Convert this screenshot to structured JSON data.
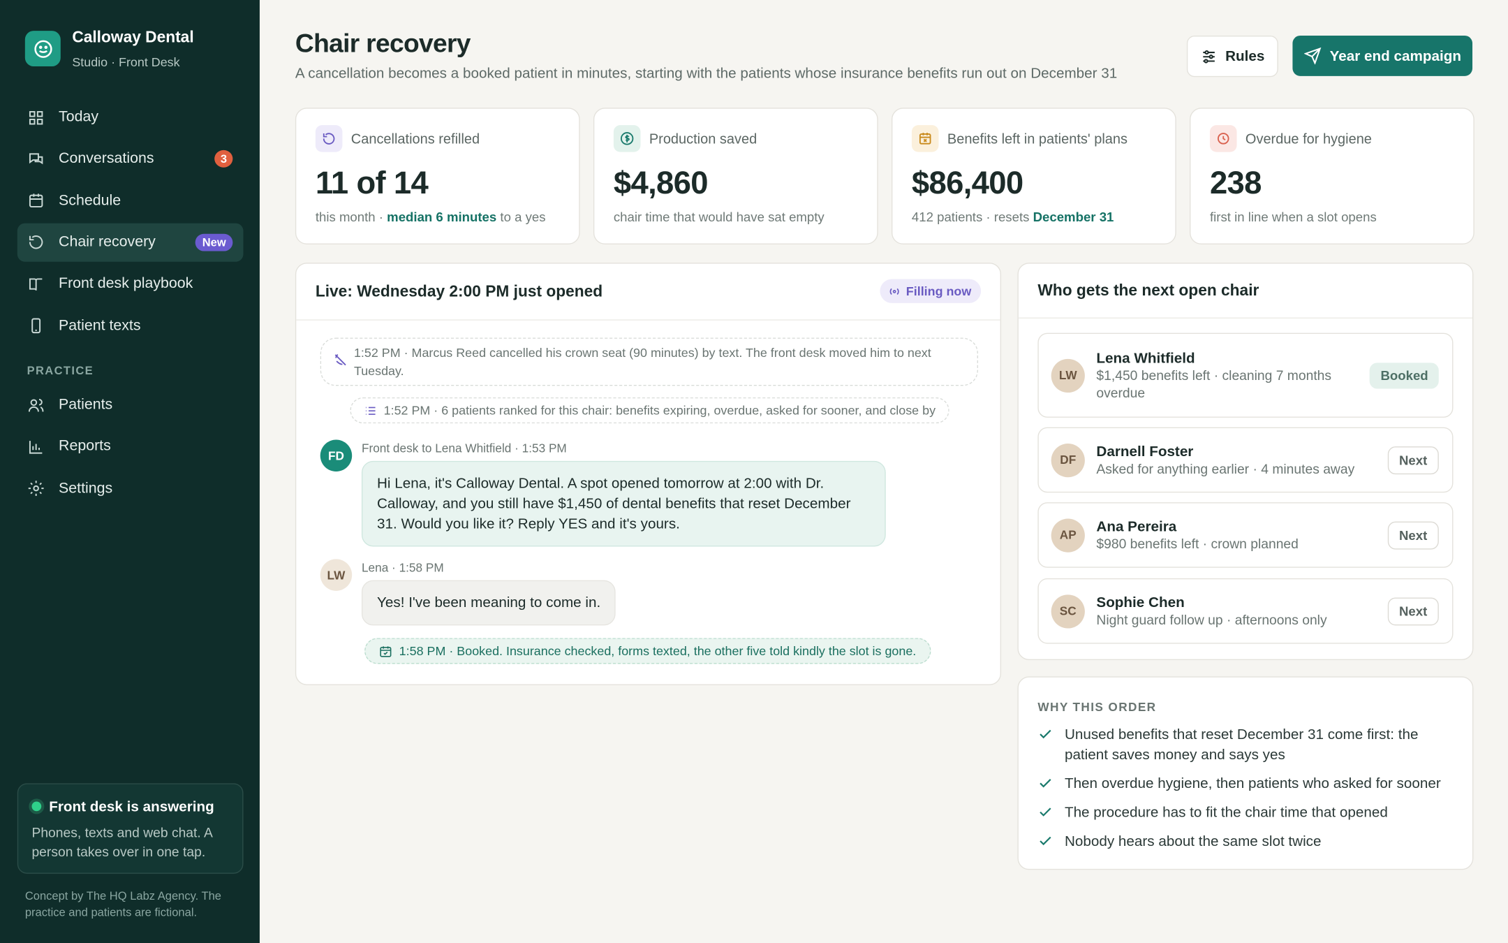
{
  "sidebar": {
    "brand": "Calloway Dental",
    "subtitle": "Studio · Front Desk",
    "nav": [
      {
        "label": "Today"
      },
      {
        "label": "Conversations",
        "badge": 3
      },
      {
        "label": "Schedule"
      },
      {
        "label": "Chair recovery",
        "badge": "New"
      },
      {
        "label": "Front desk playbook"
      },
      {
        "label": "Patient texts"
      }
    ],
    "section": "PRACTICE",
    "practice_nav": [
      "Patients",
      "Reports",
      "Settings"
    ],
    "status": {
      "title": "Front desk is answering",
      "text": "Phones, texts and web chat. A person takes over in one tap."
    },
    "footer": "Concept by The HQ Labz Agency. The practice and patients are fictional."
  },
  "header": {
    "title": "Chair recovery",
    "subtitle": "A cancellation becomes a booked patient in minutes, starting with the patients whose insurance benefits run out on December 31",
    "buttons": [
      "Rules",
      "Year end campaign"
    ]
  },
  "stats": [
    {
      "label": "Cancellations refilled",
      "value": "11 of 14",
      "note": [
        "this month · ",
        "median 6 minutes",
        " to a yes"
      ]
    },
    {
      "label": "Production saved",
      "value": "$4,860",
      "note": [
        "chair time that would have sat empty"
      ]
    },
    {
      "label": "Benefits left in patients' plans",
      "value": "$86,400",
      "note": [
        "412 patients · resets ",
        "December 31"
      ]
    },
    {
      "label": "Overdue for hygiene",
      "value": "238",
      "note": [
        "first in line when a slot opens"
      ]
    }
  ],
  "live": {
    "title": "Live: Wednesday 2:00 PM just opened",
    "status": "Filling now",
    "events": [
      "1:52 PM · Marcus Reed cancelled his crown seat (90 minutes) by text. The front desk moved him to next Tuesday.",
      "1:52 PM · 6 patients ranked for this chair: benefits expiring, overdue, asked for sooner, and close by"
    ],
    "messages": [
      {
        "avatar": "FD",
        "meta": "Front desk to Lena Whitfield · 1:53 PM",
        "text": "Hi Lena, it's Calloway Dental. A spot opened tomorrow at 2:00 with Dr. Calloway, and you still have $1,450 of dental benefits that reset December 31. Would you like it? Reply YES and it's yours."
      },
      {
        "avatar": "LW",
        "meta": "Lena · 1:58 PM",
        "text": "Yes! I've been meaning to come in."
      }
    ],
    "booked": "1:58 PM · Booked. Insurance checked, forms texted, the other five told kindly the slot is gone."
  },
  "queue": {
    "title": "Who gets the next open chair",
    "items": [
      {
        "initials": "LW",
        "name": "Lena Whitfield",
        "detail": "$1,450 benefits left · cleaning 7 months overdue",
        "tag": "Booked"
      },
      {
        "initials": "DF",
        "name": "Darnell Foster",
        "detail": "Asked for anything earlier · 4 minutes away",
        "tag": "Next"
      },
      {
        "initials": "AP",
        "name": "Ana Pereira",
        "detail": "$980 benefits left · crown planned",
        "tag": "Next"
      },
      {
        "initials": "SC",
        "name": "Sophie Chen",
        "detail": "Night guard follow up · afternoons only",
        "tag": "Next"
      }
    ]
  },
  "why": {
    "title": "WHY THIS ORDER",
    "items": [
      "Unused benefits that reset December 31 come first: the patient saves money and says yes",
      "Then overdue hygiene, then patients who asked for sooner",
      "The procedure has to fit the chair time that opened",
      "Nobody hears about the same slot twice"
    ]
  }
}
